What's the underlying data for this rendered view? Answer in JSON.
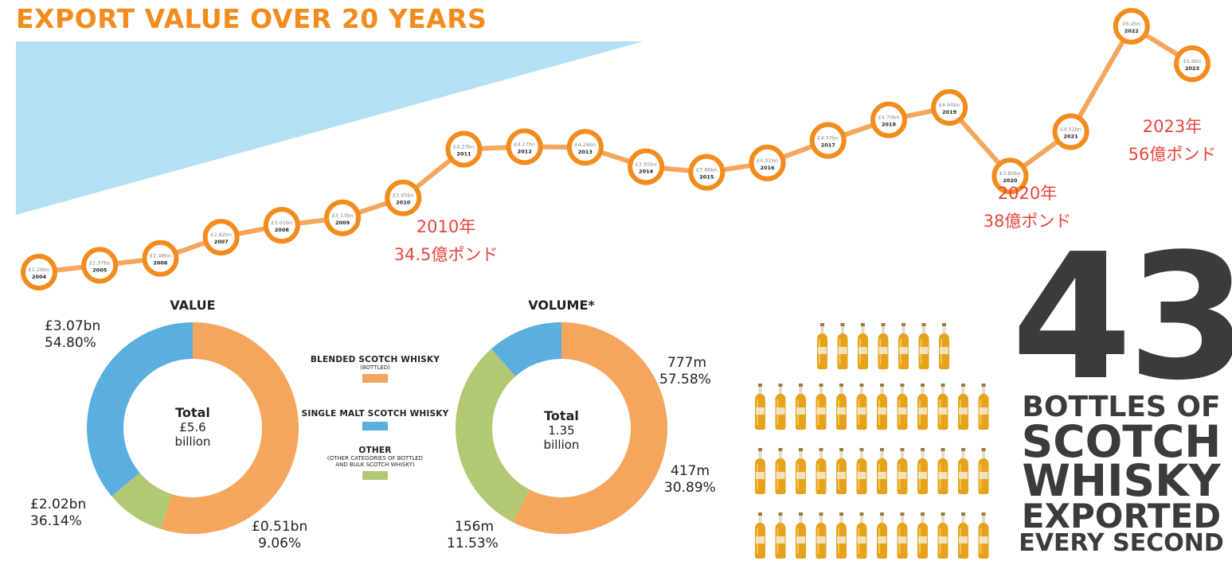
{
  "title": "EXPORT VALUE OVER 20 YEARS",
  "chart_data": [
    {
      "type": "line",
      "title": "EXPORT VALUE OVER 20 YEARS",
      "x": [
        "2004",
        "2005",
        "2006",
        "2007",
        "2008",
        "2009",
        "2010",
        "2011",
        "2012",
        "2013",
        "2014",
        "2015",
        "2016",
        "2017",
        "2018",
        "2019",
        "2020",
        "2021",
        "2022",
        "2023"
      ],
      "series": [
        {
          "values": [
            2.26,
            2.37,
            2.48,
            2.82,
            3.01,
            3.13,
            3.45,
            4.23,
            4.27,
            4.26,
            3.95,
            3.86,
            4.01,
            4.37,
            4.7,
            4.9,
            3.8,
            4.51,
            6.2,
            5.6
          ]
        }
      ],
      "point_labels": [
        "£2.26bn",
        "£2.37bn",
        "£2.48bn",
        "£2.82bn",
        "£3.01bn",
        "£3.13bn",
        "£3.45bn",
        "£4.23bn",
        "£4.27bn",
        "£4.26bn",
        "£3.95bn",
        "£3.86bn",
        "£4.01bn",
        "£4.37bn",
        "£4.70bn",
        "£4.90bn",
        "£3.80bn",
        "£4.51bn",
        "£6.2bn",
        "£5.6bn"
      ],
      "ylim": [
        2.26,
        6.2
      ],
      "colors": {
        "line": "#f5a55c",
        "marker": "#f28c1d",
        "wedge": "#b4e0f3"
      }
    },
    {
      "type": "pie",
      "title": "VALUE",
      "center": {
        "title": "Total",
        "value_lines": [
          "£5.6",
          "billion"
        ]
      },
      "slices": [
        {
          "name": "BLENDED SCOTCH WHISKY",
          "value": 54.8,
          "text": [
            "£3.07bn",
            "54.80%"
          ]
        },
        {
          "name": "OTHER",
          "value": 9.06,
          "text": [
            "£0.51bn",
            "9.06%"
          ]
        },
        {
          "name": "SINGLE MALT SCOTCH WHISKY",
          "value": 36.14,
          "text": [
            "£2.02bn",
            "36.14%"
          ]
        }
      ]
    },
    {
      "type": "pie",
      "title": "VOLUME*",
      "center": {
        "title": "Total",
        "value_lines": [
          "1.35",
          "billion"
        ]
      },
      "slices": [
        {
          "name": "BLENDED SCOTCH WHISKY",
          "value": 57.58,
          "text": [
            "777m",
            "57.58%"
          ]
        },
        {
          "name": "OTHER",
          "value": 30.89,
          "text": [
            "417m",
            "30.89%"
          ]
        },
        {
          "name": "SINGLE MALT SCOTCH WHISKY",
          "value": 11.53,
          "text": [
            "156m",
            "11.53%"
          ]
        }
      ]
    }
  ],
  "annotations": {
    "a2010": [
      "2010年",
      "34.5億ポンド"
    ],
    "a2020": [
      "2020年",
      "38億ポンド"
    ],
    "a2023": [
      "2023年",
      "56億ポンド"
    ]
  },
  "legend": {
    "blended": {
      "name": "BLENDED SCOTCH WHISKY",
      "sub": "(BOTTLED)",
      "color": "#f5a55c"
    },
    "single": {
      "name": "SINGLE MALT SCOTCH WHISKY",
      "color": "#5aafe0"
    },
    "other": {
      "name": "OTHER",
      "sub": [
        "(OTHER CATEGORIES OF BOTTLED",
        "AND BULK SCOTCH WHISKY)"
      ],
      "color": "#b3c872"
    }
  },
  "bottles": {
    "count": 43,
    "icon": "whisky-bottle-icon"
  },
  "headline": {
    "number": "43",
    "lines": [
      "BOTTLES OF",
      "SCOTCH",
      "WHISKY",
      "EXPORTED",
      "EVERY SECOND"
    ]
  }
}
